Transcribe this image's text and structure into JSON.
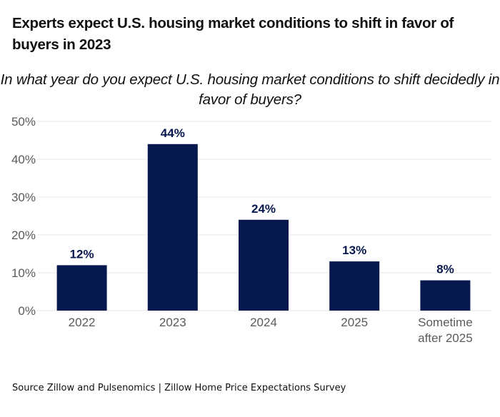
{
  "title": "Experts expect U.S. housing market conditions to shift in favor of buyers in 2023",
  "subtitle": "In what year do you expect U.S. housing market conditions to shift decidedly in favor of buyers?",
  "source": "Source Zillow and Pulsenomics | Zillow Home Price Expectations Survey",
  "colors": {
    "bar": "#06184e",
    "label": "#06184e",
    "tick": "#5a5a5a",
    "grid": "#ececec"
  },
  "chart_data": {
    "type": "bar",
    "title": "Experts expect U.S. housing market conditions to shift in favor of buyers in 2023",
    "subtitle": "In what year do you expect U.S. housing market conditions to shift decidedly in favor of buyers?",
    "categories": [
      "2022",
      "2023",
      "2024",
      "2025",
      "Sometime after 2025"
    ],
    "category_lines": [
      [
        "2022"
      ],
      [
        "2023"
      ],
      [
        "2024"
      ],
      [
        "2025"
      ],
      [
        "Sometime",
        "after 2025"
      ]
    ],
    "values": [
      12,
      44,
      24,
      13,
      8
    ],
    "data_labels": [
      "12%",
      "44%",
      "24%",
      "13%",
      "8%"
    ],
    "xlabel": "",
    "ylabel": "",
    "ylim": [
      0,
      50
    ],
    "yticks": [
      0,
      10,
      20,
      30,
      40,
      50
    ],
    "ytick_labels": [
      "0%",
      "10%",
      "20%",
      "30%",
      "40%",
      "50%"
    ],
    "grid": true,
    "legend": "none"
  }
}
